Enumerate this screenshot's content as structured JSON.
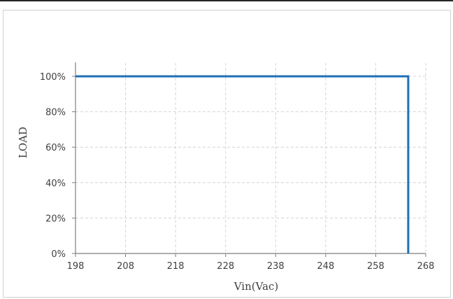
{
  "chart_data": {
    "type": "line",
    "xlabel": "Vin(Vac)",
    "ylabel": "LOAD",
    "xlim": [
      198,
      268
    ],
    "ylim": [
      0,
      100
    ],
    "x_ticks": [
      198,
      208,
      218,
      228,
      238,
      248,
      258,
      268
    ],
    "y_ticks": [
      0,
      20,
      40,
      60,
      80,
      100
    ],
    "y_tick_labels": [
      "0%",
      "20%",
      "40%",
      "60%",
      "80%",
      "100%"
    ],
    "grid": true,
    "series": [
      {
        "x": [
          198,
          264.5,
          264.5
        ],
        "y": [
          100,
          100,
          0
        ],
        "color": "#1f6fb5"
      }
    ]
  }
}
